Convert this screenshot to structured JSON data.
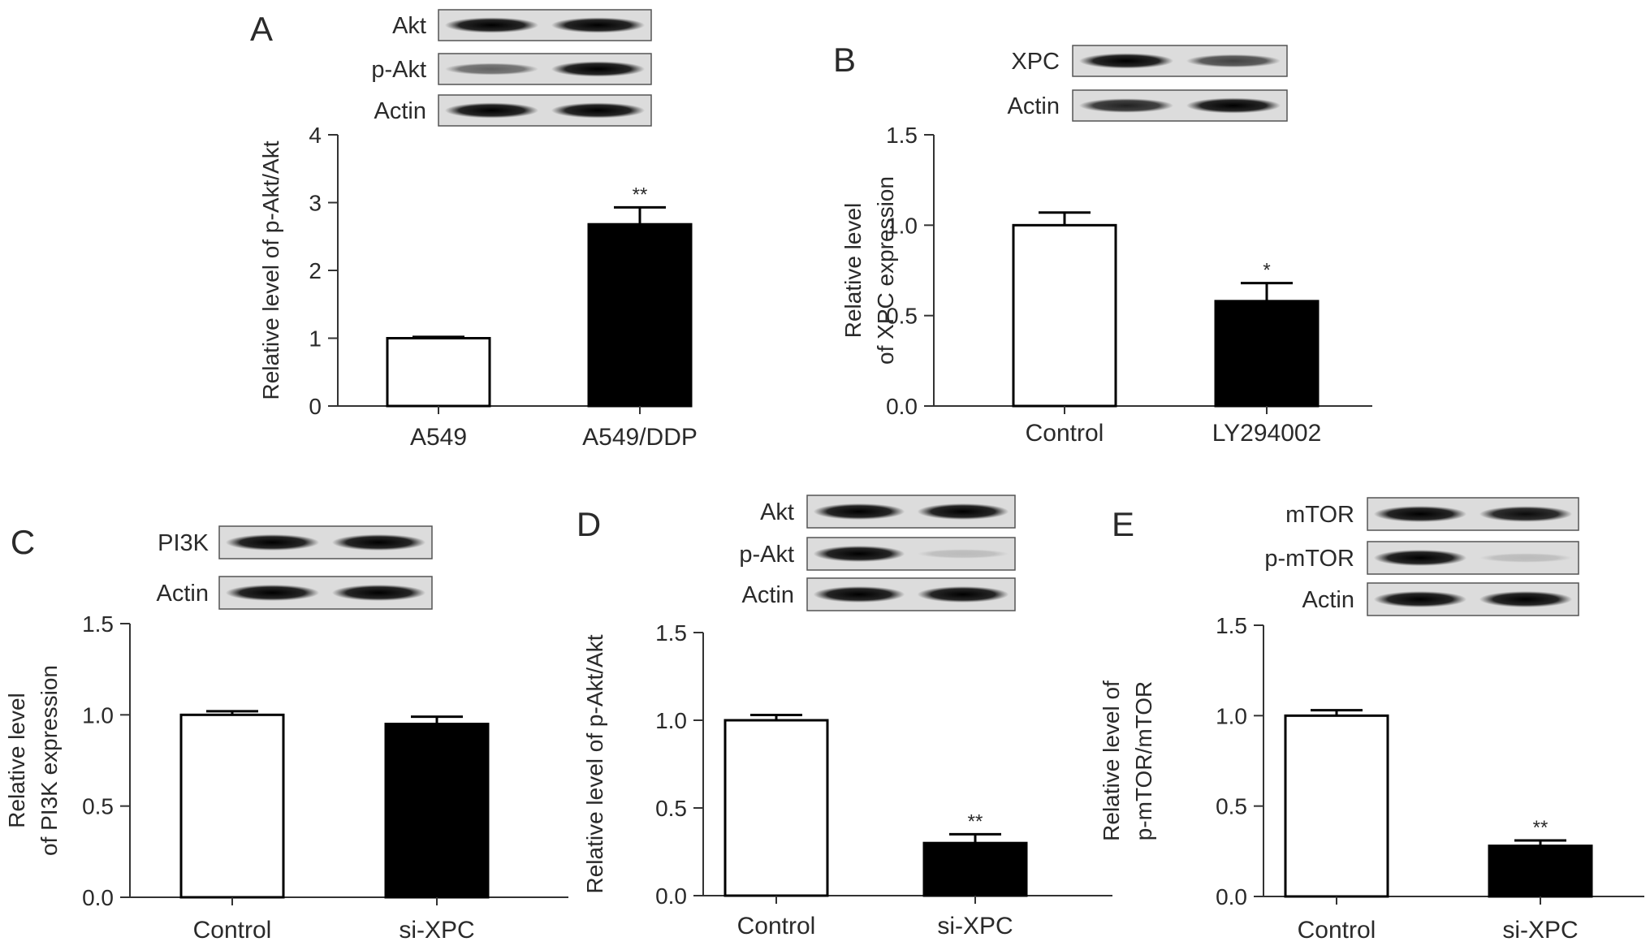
{
  "chart_data": [
    {
      "panel": "A",
      "type": "bar",
      "categories": [
        "A549",
        "A549/DDP"
      ],
      "values": [
        1.0,
        2.68
      ],
      "errors": [
        0.02,
        0.25
      ],
      "significance": [
        "",
        "**"
      ],
      "fill_colors": [
        "#ffffff",
        "#000000"
      ],
      "ylabel": "Relative level of p-Akt/Akt",
      "ylim": [
        0,
        4
      ],
      "yticks": [
        "0",
        "1",
        "2",
        "3",
        "4"
      ],
      "blot": {
        "rows": [
          "Akt",
          "p-Akt",
          "Actin"
        ]
      }
    },
    {
      "panel": "B",
      "type": "bar",
      "categories": [
        "Control",
        "LY294002"
      ],
      "values": [
        1.0,
        0.58
      ],
      "errors": [
        0.07,
        0.1
      ],
      "significance": [
        "",
        "*"
      ],
      "fill_colors": [
        "#ffffff",
        "#000000"
      ],
      "ylabel": [
        "Relative level",
        "of XPC expression"
      ],
      "ylim": [
        0,
        1.5
      ],
      "yticks": [
        "0.0",
        "0.5",
        "1.0",
        "1.5"
      ],
      "blot": {
        "rows": [
          "XPC",
          "Actin"
        ]
      }
    },
    {
      "panel": "C",
      "type": "bar",
      "categories": [
        "Control",
        "si-XPC"
      ],
      "values": [
        1.0,
        0.95
      ],
      "errors": [
        0.02,
        0.04
      ],
      "significance": [
        "",
        ""
      ],
      "fill_colors": [
        "#ffffff",
        "#000000"
      ],
      "ylabel": [
        "Relative level",
        "of PI3K expression"
      ],
      "ylim": [
        0,
        1.5
      ],
      "yticks": [
        "0.0",
        "0.5",
        "1.0",
        "1.5"
      ],
      "blot": {
        "rows": [
          "PI3K",
          "Actin"
        ]
      }
    },
    {
      "panel": "D",
      "type": "bar",
      "categories": [
        "Control",
        "si-XPC"
      ],
      "values": [
        1.0,
        0.3
      ],
      "errors": [
        0.03,
        0.05
      ],
      "significance": [
        "",
        "**"
      ],
      "fill_colors": [
        "#ffffff",
        "#000000"
      ],
      "ylabel": "Relative level of p-Akt/Akt",
      "ylim": [
        0,
        1.5
      ],
      "yticks": [
        "0.0",
        "0.5",
        "1.0",
        "1.5"
      ],
      "blot": {
        "rows": [
          "Akt",
          "p-Akt",
          "Actin"
        ]
      }
    },
    {
      "panel": "E",
      "type": "bar",
      "categories": [
        "Control",
        "si-XPC"
      ],
      "values": [
        1.0,
        0.28
      ],
      "errors": [
        0.03,
        0.03
      ],
      "significance": [
        "",
        "**"
      ],
      "fill_colors": [
        "#ffffff",
        "#000000"
      ],
      "ylabel": [
        "Relative level of",
        "p-mTOR/mTOR"
      ],
      "ylim": [
        0,
        1.5
      ],
      "yticks": [
        "0.0",
        "0.5",
        "1.0",
        "1.5"
      ],
      "blot": {
        "rows": [
          "mTOR",
          "p-mTOR",
          "Actin"
        ]
      }
    }
  ]
}
